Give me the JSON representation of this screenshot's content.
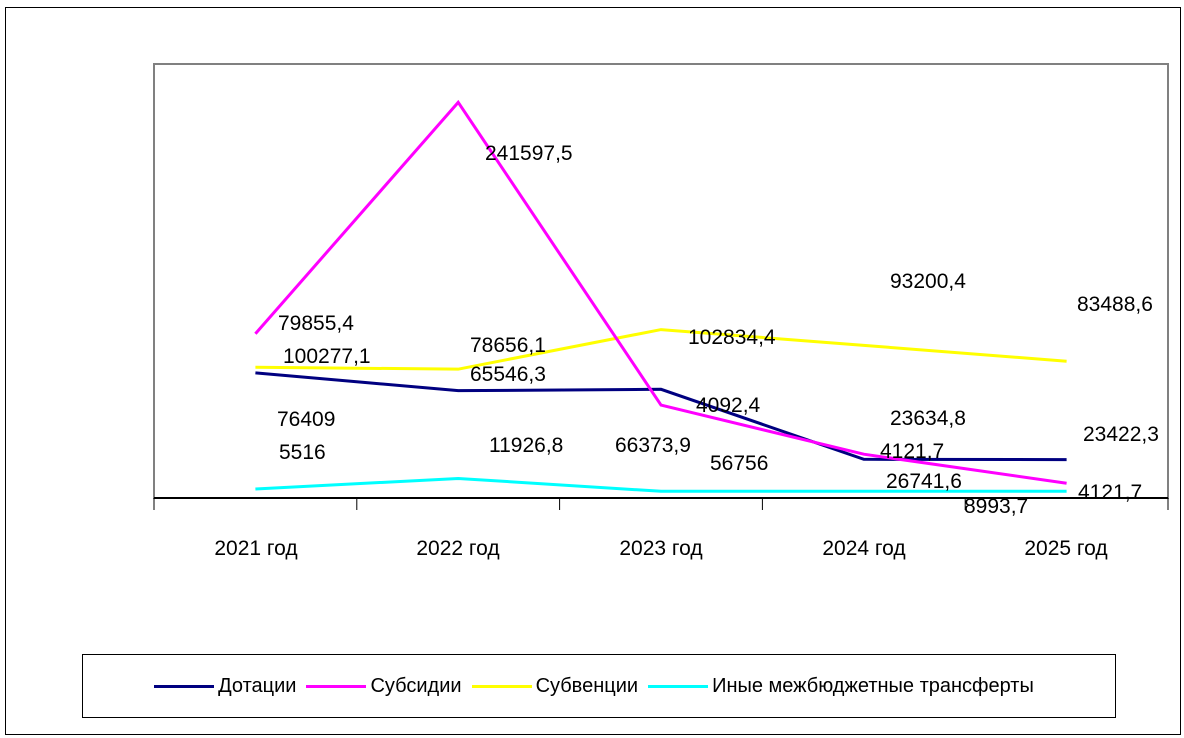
{
  "chart_data": {
    "type": "line",
    "categories": [
      "2021 год",
      "2022 год",
      "2023 год",
      "2024 год",
      "2025 год"
    ],
    "series": [
      {
        "name": "Дотации",
        "color": "#000080",
        "values": [
          76409,
          65546.3,
          66373.9,
          23634.8,
          23422.3
        ]
      },
      {
        "name": "Субсидии",
        "color": "#ff00ff",
        "values": [
          100277.1,
          241597.5,
          56756,
          26741.6,
          8993.7
        ]
      },
      {
        "name": "Субвенции",
        "color": "#ffff00",
        "values": [
          79855.4,
          78656.1,
          102834.4,
          93200.4,
          83488.6
        ]
      },
      {
        "name": "Иные межбюджетные трансферты",
        "color": "#00ffff",
        "values": [
          5516,
          11926.8,
          4092.4,
          4121.7,
          4121.7
        ]
      }
    ],
    "data_labels": [
      "79855,4",
      "100277,1",
      "76409",
      "5516",
      "241597,5",
      "78656,1",
      "65546,3",
      "11926,8",
      "102834,4",
      "4092,4",
      "66373,9",
      "56756",
      "93200,4",
      "23634,8",
      "4121,7",
      "26741,6",
      "83488,6",
      "23422,3",
      "8993,7",
      "4121,7"
    ],
    "grid": false,
    "legend_position": "bottom"
  }
}
